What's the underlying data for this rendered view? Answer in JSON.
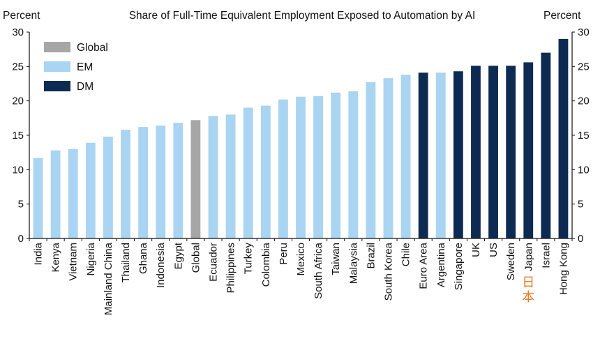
{
  "chart_data": {
    "type": "bar",
    "title": "Share of Full-Time Equivalent Employment Exposed to Automation by AI",
    "ylabel_left": "Percent",
    "ylabel_right": "Percent",
    "ylim": [
      0,
      30
    ],
    "yticks": [
      0,
      5,
      10,
      15,
      20,
      25,
      30
    ],
    "grid": false,
    "legend_position": "top-left",
    "colors": {
      "Global": "#a6a6a6",
      "EM": "#a9d4f2",
      "DM": "#0d2b52"
    },
    "legend": [
      "Global",
      "EM",
      "DM"
    ],
    "categories": [
      "India",
      "Kenya",
      "Vietnam",
      "Nigeria",
      "Mainland China",
      "Thailand",
      "Ghana",
      "Indonesia",
      "Egypt",
      "Global",
      "Ecuador",
      "Philippines",
      "Turkey",
      "Colombia",
      "Peru",
      "Mexico",
      "South Africa",
      "Taiwan",
      "Malaysia",
      "Brazil",
      "South Korea",
      "Chile",
      "Euro Area",
      "Argentina",
      "Singapore",
      "UK",
      "US",
      "Sweden",
      "Japan",
      "Israel",
      "Hong Kong"
    ],
    "groups": [
      "EM",
      "EM",
      "EM",
      "EM",
      "EM",
      "EM",
      "EM",
      "EM",
      "EM",
      "Global",
      "EM",
      "EM",
      "EM",
      "EM",
      "EM",
      "EM",
      "EM",
      "EM",
      "EM",
      "EM",
      "EM",
      "EM",
      "DM",
      "EM",
      "DM",
      "DM",
      "DM",
      "DM",
      "DM",
      "DM",
      "DM"
    ],
    "values": [
      11.7,
      12.8,
      13.0,
      13.9,
      14.8,
      15.8,
      16.2,
      16.4,
      16.8,
      17.2,
      17.8,
      18.0,
      19.0,
      19.3,
      20.2,
      20.6,
      20.7,
      21.2,
      21.4,
      22.7,
      23.3,
      23.8,
      24.1,
      24.1,
      24.3,
      25.1,
      25.1,
      25.1,
      25.6,
      27.0,
      29.0
    ],
    "annotation": {
      "category": "Japan",
      "text": "日本",
      "color": "#e87722"
    }
  }
}
